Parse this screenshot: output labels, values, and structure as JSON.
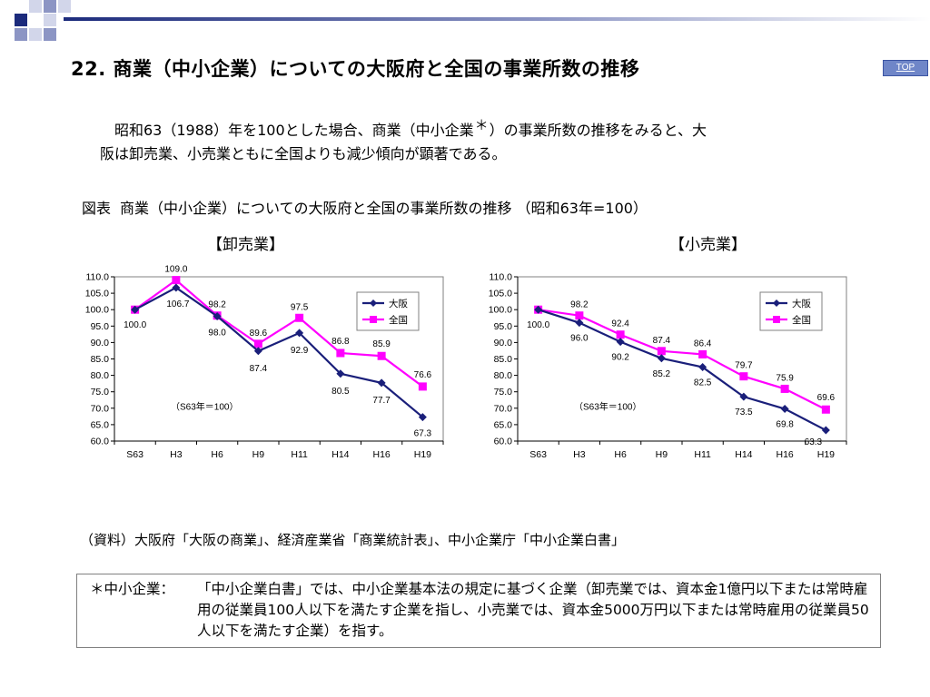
{
  "slide": {
    "title": "22. 商業（中小企業）についての大阪府と全国の事業所数の推移",
    "top_button": "TOP",
    "intro_line1_before": "昭和63（1988）年を100とした場合、商業（中小企業",
    "intro_asterisk": "＊",
    "intro_line1_after": "）の事業所数の推移をみると、大",
    "intro_line2": "阪は卸売業、小売業ともに全国よりも減少傾向が顕著である。",
    "figure_label": "図表",
    "figure_caption": "商業（中小企業）についての大阪府と全国の事業所数の推移 （昭和63年=100）",
    "source": "（資料）大阪府「大阪の商業」、経済産業省「商業統計表」、中小企業庁「中小企業白書」",
    "note_term": "＊中小企業：",
    "note_text": "「中小企業白書」では、中小企業基本法の規定に基づく企業（卸売業では、資本金1億円以下または常時雇用の従業員100人以下を満たす企業を指し、小売業では、資本金5000万円以下または常時雇用の従業員50人以下を満たす企業）を指す。"
  },
  "colors": {
    "osaka": "#1a1f7a",
    "national": "#ff00ff",
    "grid": "#000000",
    "deco_dark": "#1c2b7c",
    "deco_mid": "#8c95c4",
    "deco_light": "#d2d6ea"
  },
  "chart_data": [
    {
      "type": "line",
      "title": "【卸売業】",
      "categories": [
        "S63",
        "H3",
        "H6",
        "H9",
        "H11",
        "H14",
        "H16",
        "H19"
      ],
      "ylim": [
        60.0,
        110.0
      ],
      "ytick_step": 5,
      "yticks": [
        "60.0",
        "65.0",
        "70.0",
        "75.0",
        "80.0",
        "85.0",
        "90.0",
        "95.0",
        "100.0",
        "105.0",
        "110.0"
      ],
      "annotation": "（S63年＝100）",
      "legend_position": "top-right",
      "series": [
        {
          "name": "大阪",
          "values": [
            100.0,
            106.7,
            98.0,
            87.4,
            92.9,
            80.5,
            77.7,
            67.3
          ],
          "labels": [
            "100.0",
            "106.7",
            "98.0",
            "87.4",
            "92.9",
            "80.5",
            "77.7",
            "67.3"
          ]
        },
        {
          "name": "全国",
          "values": [
            100.0,
            109.0,
            98.2,
            89.6,
            97.5,
            86.8,
            85.9,
            76.6
          ],
          "labels": [
            "",
            "109.0",
            "98.2",
            "89.6",
            "97.5",
            "86.8",
            "85.9",
            "76.6"
          ]
        }
      ]
    },
    {
      "type": "line",
      "title": "【小売業】",
      "categories": [
        "S63",
        "H3",
        "H6",
        "H9",
        "H11",
        "H14",
        "H16",
        "H19"
      ],
      "ylim": [
        60.0,
        110.0
      ],
      "ytick_step": 5,
      "yticks": [
        "60.0",
        "65.0",
        "70.0",
        "75.0",
        "80.0",
        "85.0",
        "90.0",
        "95.0",
        "100.0",
        "105.0",
        "110.0"
      ],
      "annotation": "（S63年＝100）",
      "legend_position": "top-right",
      "series": [
        {
          "name": "大阪",
          "values": [
            100.0,
            96.0,
            90.2,
            85.2,
            82.5,
            73.5,
            69.8,
            63.3
          ],
          "labels": [
            "100.0",
            "96.0",
            "90.2",
            "85.2",
            "82.5",
            "73.5",
            "69.8",
            "63.3"
          ]
        },
        {
          "name": "全国",
          "values": [
            100.0,
            98.2,
            92.4,
            87.4,
            86.4,
            79.7,
            75.9,
            69.6
          ],
          "labels": [
            "",
            "98.2",
            "92.4",
            "87.4",
            "86.4",
            "79.7",
            "75.9",
            "69.6"
          ]
        }
      ]
    }
  ]
}
